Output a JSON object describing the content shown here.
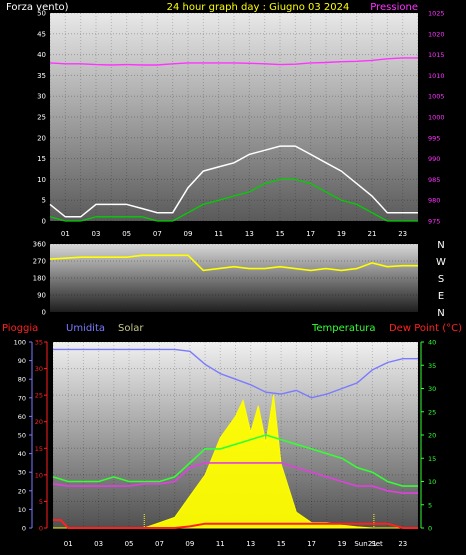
{
  "header": {
    "left_label": "Forza vento)",
    "title": "24 hour graph day : Giugno 03 2024",
    "right_label": "Pressione"
  },
  "colors": {
    "background": "#000000",
    "wind_gust": "#ffffff",
    "wind_avg": "#00d000",
    "pressure": "#ff33ff",
    "direction": "#ffff00",
    "rain": "#ff2020",
    "humidity": "#7a7aff",
    "solar": "#ffff00",
    "temperature": "#33ff33",
    "dewpoint": "#e040e0",
    "sunrise_sunset_marker": "#ffff00"
  },
  "bottom_legend": {
    "rain": "Pioggia",
    "humidity": "Umidita",
    "solar": "Solar",
    "temperature": "Temperatura",
    "dewpoint": "Dew Point (°C)"
  },
  "direction_labels": [
    "N",
    "W",
    "S",
    "E",
    "N"
  ],
  "chart_data": [
    {
      "type": "line",
      "name_ref": "wind_pressure",
      "x_range_hours": [
        0,
        24
      ],
      "x_ticks": [
        "01",
        "03",
        "05",
        "07",
        "09",
        "11",
        "13",
        "15",
        "17",
        "19",
        "21",
        "23"
      ],
      "left_axis": {
        "ylim": [
          0,
          50
        ],
        "ticks": [
          "0",
          "5",
          "10",
          "15",
          "20",
          "25",
          "30",
          "35",
          "40",
          "45",
          "50"
        ]
      },
      "right_axis": {
        "ylim": [
          975,
          1025
        ],
        "ticks": [
          "975",
          "980",
          "985",
          "990",
          "995",
          "1000",
          "1005",
          "1010",
          "1015",
          "1020",
          "1025"
        ]
      },
      "pressure": {
        "x": [
          0,
          1,
          2,
          3,
          4,
          5,
          6,
          7,
          8,
          9,
          10,
          11,
          12,
          13,
          14,
          15,
          16,
          17,
          18,
          19,
          20,
          21,
          22,
          23,
          24
        ],
        "values": [
          1013,
          1012.8,
          1012.8,
          1012.6,
          1012.5,
          1012.6,
          1012.5,
          1012.5,
          1012.8,
          1013,
          1013,
          1013,
          1013,
          1012.9,
          1012.8,
          1012.6,
          1012.7,
          1013,
          1013.1,
          1013.3,
          1013.4,
          1013.6,
          1014,
          1014.2,
          1014.2
        ]
      },
      "wind_gust": {
        "x": [
          0,
          1,
          2,
          3,
          4,
          5,
          6,
          7,
          8,
          9,
          10,
          11,
          12,
          13,
          14,
          15,
          16,
          17,
          18,
          19,
          20,
          21,
          22,
          23,
          24
        ],
        "values": [
          4,
          1,
          1,
          4,
          4,
          4,
          3,
          2,
          2,
          8,
          12,
          13,
          14,
          16,
          17,
          18,
          18,
          16,
          14,
          12,
          9,
          6,
          2,
          2,
          2
        ]
      },
      "wind_avg": {
        "x": [
          0,
          1,
          2,
          3,
          4,
          5,
          6,
          7,
          8,
          9,
          10,
          11,
          12,
          13,
          14,
          15,
          16,
          17,
          18,
          19,
          20,
          21,
          22,
          23,
          24
        ],
        "values": [
          1,
          0,
          0,
          1,
          1,
          1,
          1,
          0,
          0,
          2,
          4,
          5,
          6,
          7,
          9,
          10,
          10,
          9,
          7,
          5,
          4,
          2,
          0,
          0,
          0
        ]
      }
    },
    {
      "type": "line",
      "name_ref": "wind_direction",
      "x_range_hours": [
        0,
        24
      ],
      "ylim": [
        0,
        360
      ],
      "ticks": [
        "0",
        "90",
        "180",
        "270",
        "360"
      ],
      "direction": {
        "x": [
          0,
          1,
          2,
          3,
          4,
          5,
          6,
          7,
          8,
          9,
          10,
          11,
          12,
          13,
          14,
          15,
          16,
          17,
          18,
          19,
          20,
          21,
          22,
          23,
          24
        ],
        "values": [
          280,
          285,
          290,
          290,
          290,
          290,
          300,
          300,
          300,
          300,
          220,
          230,
          240,
          230,
          230,
          240,
          230,
          220,
          230,
          220,
          230,
          260,
          240,
          245,
          245
        ]
      }
    },
    {
      "type": "line",
      "name_ref": "rain_humidity_solar_temp",
      "x_range_hours": [
        0,
        24
      ],
      "x_ticks": [
        "01",
        "03",
        "05",
        "07",
        "09",
        "11",
        "13",
        "15",
        "17",
        "19",
        "21",
        "23"
      ],
      "x_annotations": [
        "Sun",
        "Set"
      ],
      "humidity_axis": {
        "ylim": [
          0,
          100
        ],
        "ticks": [
          "0",
          "10",
          "20",
          "30",
          "40",
          "50",
          "60",
          "70",
          "80",
          "90",
          "100"
        ]
      },
      "rain_axis": {
        "ylim": [
          0,
          35
        ],
        "ticks": [
          "0",
          "5",
          "10",
          "15",
          "20",
          "25",
          "30",
          "35"
        ]
      },
      "temp_axis": {
        "ylim": [
          0,
          40
        ],
        "ticks": [
          "0",
          "5",
          "10",
          "15",
          "20",
          "25",
          "30",
          "35",
          "40"
        ]
      },
      "humidity": {
        "x": [
          0,
          1,
          2,
          3,
          4,
          5,
          6,
          7,
          8,
          9,
          10,
          11,
          12,
          13,
          14,
          15,
          16,
          17,
          18,
          19,
          20,
          21,
          22,
          23,
          24
        ],
        "values": [
          96,
          96,
          96,
          96,
          96,
          96,
          96,
          96,
          96,
          95,
          88,
          83,
          80,
          77,
          73,
          72,
          74,
          70,
          72,
          75,
          78,
          85,
          89,
          91,
          91
        ]
      },
      "temperature": {
        "x": [
          0,
          1,
          2,
          3,
          4,
          5,
          6,
          7,
          8,
          9,
          10,
          11,
          12,
          13,
          14,
          15,
          16,
          17,
          18,
          19,
          20,
          21,
          22,
          23,
          24
        ],
        "values": [
          11,
          10,
          10,
          10,
          11,
          10,
          10,
          10,
          11,
          14,
          17,
          17,
          18,
          19,
          20,
          19,
          18,
          17,
          16,
          15,
          13,
          12,
          10,
          9,
          9
        ]
      },
      "dewpoint": {
        "x": [
          0,
          1,
          2,
          3,
          4,
          5,
          6,
          7,
          8,
          9,
          10,
          11,
          12,
          13,
          14,
          15,
          16,
          17,
          18,
          19,
          20,
          21,
          22,
          23,
          24
        ],
        "values": [
          9.5,
          9,
          9,
          9,
          9,
          9,
          9.5,
          9.5,
          10,
          13,
          14,
          14,
          14,
          14,
          14,
          14,
          13,
          12,
          11,
          10,
          9,
          9,
          8,
          7.5,
          7.5
        ]
      },
      "rain": {
        "x": [
          0,
          0.5,
          1,
          2,
          3,
          4,
          5,
          6,
          7,
          8,
          9,
          10,
          11,
          12,
          13,
          14,
          15,
          16,
          17,
          18,
          19,
          20,
          21,
          22,
          23,
          24
        ],
        "values": [
          1.5,
          1.5,
          0,
          0,
          0,
          0,
          0,
          0,
          0,
          0,
          0.3,
          0.8,
          0.8,
          0.8,
          0.8,
          0.8,
          0.8,
          0.8,
          0.8,
          0.8,
          0.8,
          0.8,
          0.8,
          0.8,
          0,
          0
        ]
      },
      "solar": {
        "x": [
          0,
          6,
          7,
          8,
          9,
          10,
          11,
          12,
          12.5,
          13,
          13.5,
          14,
          14.5,
          15,
          16,
          17,
          18,
          19,
          20,
          21,
          24
        ],
        "values": [
          0,
          0,
          1,
          2,
          6,
          10,
          17,
          21,
          24,
          18,
          23,
          16,
          25,
          12,
          3,
          1,
          1,
          0.5,
          0.2,
          0,
          0
        ]
      }
    }
  ]
}
